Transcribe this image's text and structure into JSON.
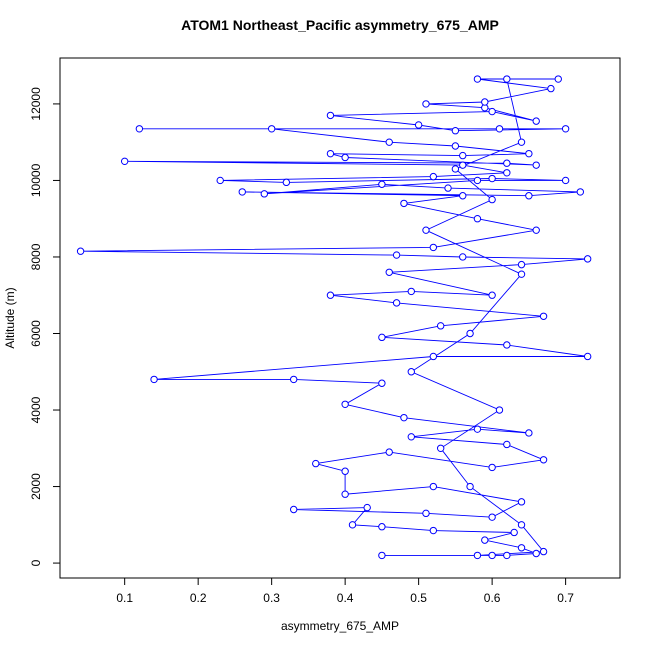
{
  "chart_data": {
    "type": "line",
    "title": "ATOM1 Northeast_Pacific asymmetry_675_AMP",
    "x_label": "asymmetry_675_AMP",
    "y_label": "Altitude (m)",
    "color": "#0000ff",
    "markers": "open-circle",
    "xlim": [
      0.012,
      0.774
    ],
    "ylim": [
      -390,
      13200
    ],
    "xticks": [
      0.1,
      0.2,
      0.3,
      0.4,
      0.5,
      0.6,
      0.7
    ],
    "yticks": [
      0,
      2000,
      4000,
      6000,
      8000,
      10000,
      12000
    ],
    "x": [
      0.45,
      0.6,
      0.62,
      0.66,
      0.64,
      0.59,
      0.63,
      0.52,
      0.45,
      0.41,
      0.43,
      0.33,
      0.51,
      0.6,
      0.64,
      0.52,
      0.4,
      0.4,
      0.36,
      0.46,
      0.6,
      0.67,
      0.62,
      0.49,
      0.58,
      0.65,
      0.48,
      0.4,
      0.45,
      0.33,
      0.14,
      0.52,
      0.73,
      0.62,
      0.45,
      0.53,
      0.67,
      0.47,
      0.38,
      0.49,
      0.6,
      0.46,
      0.64,
      0.73,
      0.56,
      0.47,
      0.04,
      0.52,
      0.66,
      0.58,
      0.48,
      0.56,
      0.26,
      0.65,
      0.72,
      0.54,
      0.45,
      0.29,
      0.58,
      0.7,
      0.6,
      0.32,
      0.23,
      0.52,
      0.62,
      0.56,
      0.1,
      0.62,
      0.66,
      0.4,
      0.38,
      0.56,
      0.65,
      0.55,
      0.46,
      0.3,
      0.12,
      0.61,
      0.7,
      0.55,
      0.5,
      0.38,
      0.6,
      0.66,
      0.59,
      0.51,
      0.59,
      0.68,
      0.58,
      0.69,
      0.62,
      0.64,
      0.55,
      0.6,
      0.51,
      0.64,
      0.57,
      0.49,
      0.61,
      0.53,
      0.57,
      0.64,
      0.67,
      0.58
    ],
    "values": [
      200,
      200,
      200,
      250,
      400,
      600,
      800,
      850,
      950,
      1000,
      1450,
      1400,
      1300,
      1200,
      1600,
      2000,
      1800,
      2400,
      2600,
      2900,
      2500,
      2700,
      3100,
      3300,
      3500,
      3400,
      3800,
      4150,
      4700,
      4800,
      4800,
      5400,
      5400,
      5700,
      5900,
      6200,
      6450,
      6800,
      7000,
      7100,
      7000,
      7600,
      7800,
      7950,
      8000,
      8050,
      8150,
      8250,
      8700,
      9000,
      9400,
      9600,
      9700,
      9600,
      9700,
      9800,
      9900,
      9650,
      10000,
      10000,
      10050,
      9950,
      10000,
      10100,
      10200,
      10400,
      10500,
      10450,
      10400,
      10600,
      10700,
      10650,
      10700,
      10900,
      11000,
      11350,
      11350,
      11350,
      11350,
      11300,
      11450,
      11700,
      11800,
      11550,
      11900,
      12000,
      12050,
      12400,
      12650,
      12650,
      12650,
      11000,
      10300,
      9500,
      8700,
      7550,
      6000,
      5000,
      4000,
      3000,
      2000,
      1000,
      300,
      200
    ]
  }
}
